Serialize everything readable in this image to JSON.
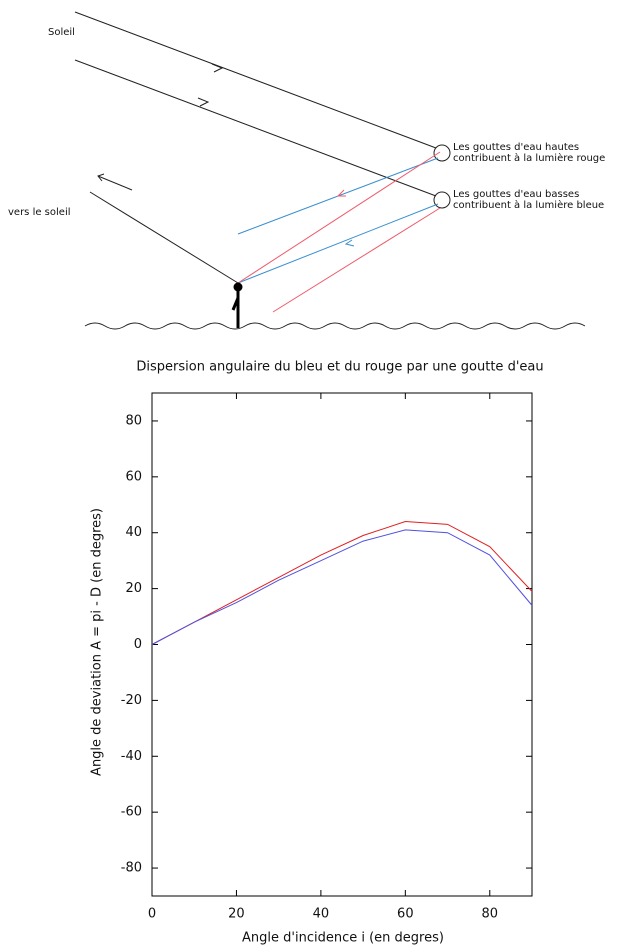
{
  "diagram": {
    "sun_label": "Soleil",
    "toward_sun_label": "vers le soleil",
    "high_drops": [
      "Les gouttes d'eau hautes",
      "contribuent à la lumière rouge"
    ],
    "low_drops": [
      "Les gouttes d'eau basses",
      "contribuent à la lumière bleue"
    ]
  },
  "chart_data": {
    "type": "line",
    "title": "Dispersion angulaire du bleu et du rouge par une goutte d'eau",
    "xlabel": "Angle d'incidence i (en degres)",
    "ylabel": "Angle de deviation A = pi - D (en degres)",
    "x": [
      0,
      10,
      20,
      30,
      40,
      50,
      60,
      70,
      80,
      90
    ],
    "series": [
      {
        "color": "#e02020",
        "values": [
          0,
          8,
          16,
          24,
          32,
          39,
          44,
          43,
          35,
          19
        ]
      },
      {
        "color": "#5050e0",
        "values": [
          0,
          8,
          15,
          23,
          30,
          37,
          41,
          40,
          32,
          14
        ]
      }
    ],
    "xlim": [
      0,
      90
    ],
    "ylim": [
      -90,
      90
    ],
    "xticks": [
      0,
      20,
      40,
      60,
      80
    ],
    "yticks": [
      -80,
      -60,
      -40,
      -20,
      0,
      20,
      40,
      60,
      80
    ],
    "grid": false
  }
}
